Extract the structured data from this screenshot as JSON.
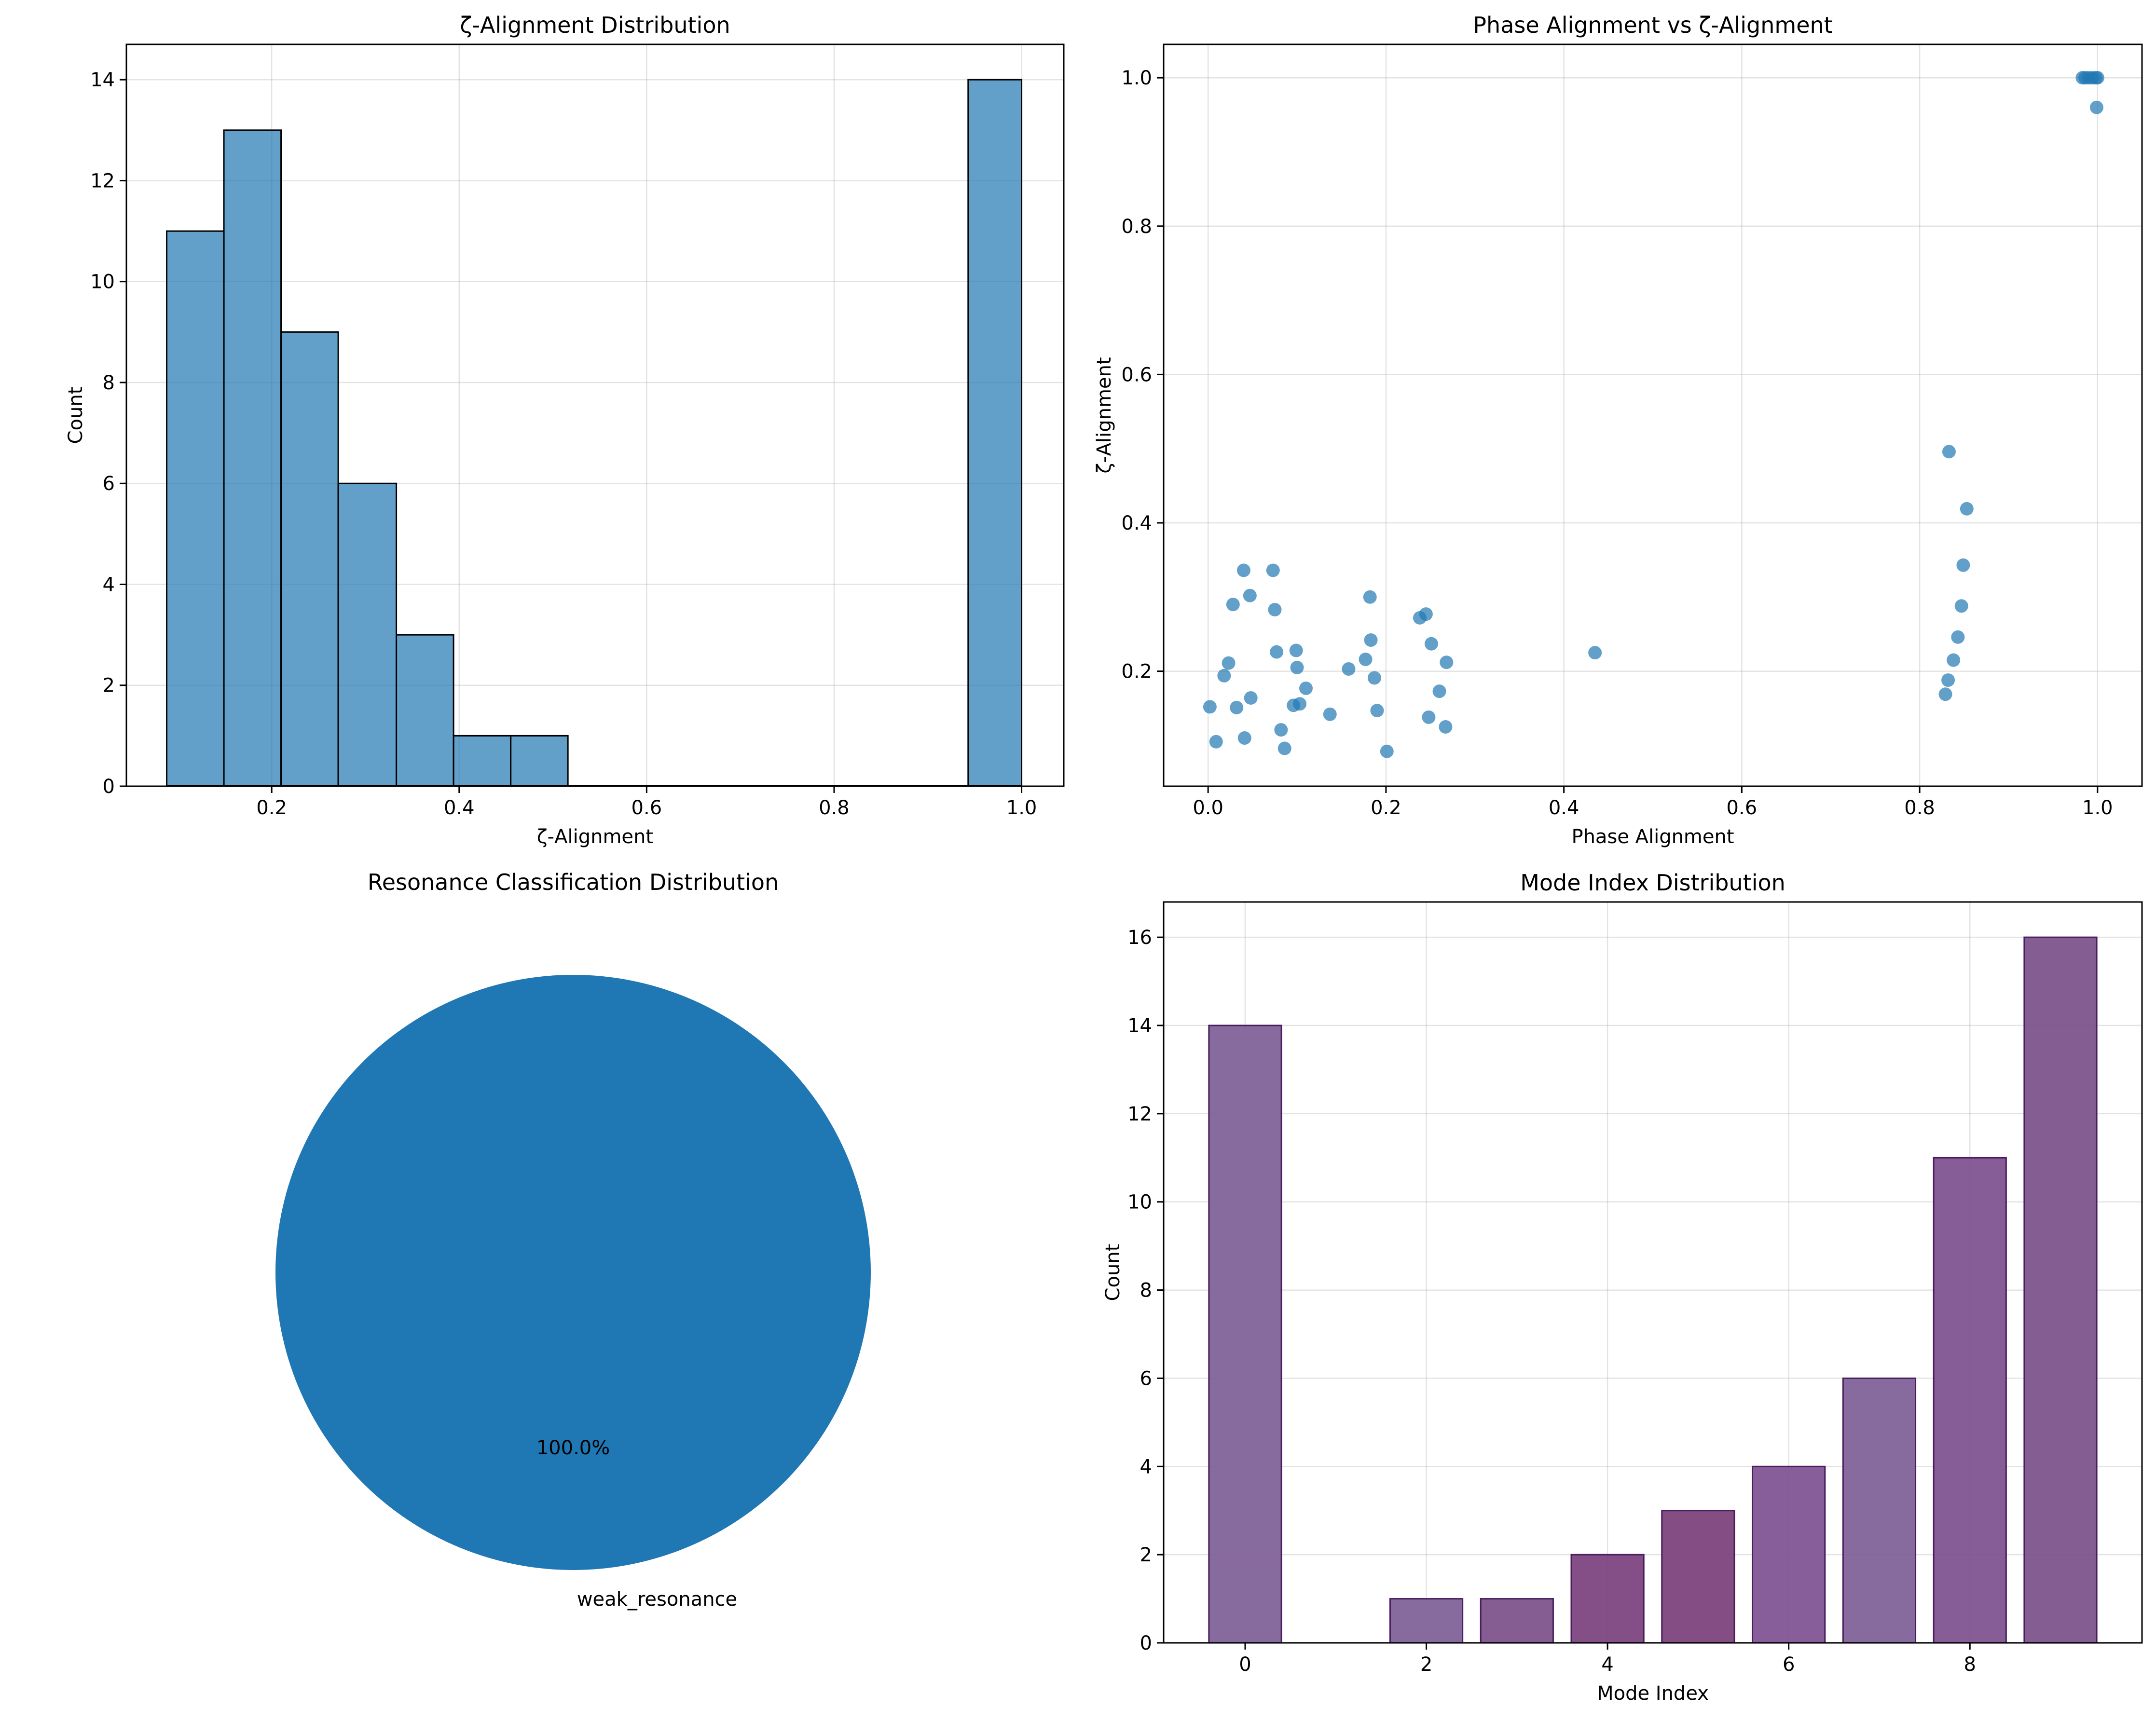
{
  "colors": {
    "hist": "#1f77b4",
    "scatter": "#1f77b4",
    "pie": "#1f77b4",
    "bars": [
      "#7e5e96",
      "#7e5e96",
      "#7e5e96",
      "#7b4f8a",
      "#7a3f7c",
      "#7a3f7a",
      "#7d5090",
      "#7d5e96",
      "#7c4f8e",
      "#7a4f8a"
    ],
    "grid": "#b0b0b0",
    "edge": "#000000"
  },
  "chart_data": [
    {
      "type": "bar",
      "subtype": "histogram",
      "title": "ζ-Alignment Distribution",
      "xlabel": "ζ-Alignment",
      "ylabel": "Count",
      "bin_edges": [
        0.088,
        0.149,
        0.21,
        0.271,
        0.333,
        0.394,
        0.455,
        0.516,
        0.577,
        0.638,
        0.699,
        0.76,
        0.821,
        0.882,
        0.943,
        1.0
      ],
      "values": [
        11,
        13,
        9,
        6,
        3,
        1,
        1,
        0,
        0,
        0,
        0,
        0,
        0,
        0,
        14
      ],
      "xlim": [
        0.045,
        1.045
      ],
      "ylim": [
        0,
        14.7
      ],
      "xticks": [
        0.2,
        0.4,
        0.6,
        0.8,
        1.0
      ],
      "xtick_labels": [
        "0.2",
        "0.4",
        "0.6",
        "0.8",
        "1.0"
      ],
      "yticks": [
        0,
        2,
        4,
        6,
        8,
        10,
        12,
        14
      ],
      "ytick_labels": [
        "0",
        "2",
        "4",
        "6",
        "8",
        "10",
        "12",
        "14"
      ],
      "grid": true
    },
    {
      "type": "scatter",
      "title": "Phase Alignment vs ζ-Alignment",
      "xlabel": "Phase Alignment",
      "ylabel": "ζ-Alignment",
      "xlim": [
        -0.05,
        1.05
      ],
      "ylim": [
        0.045,
        1.045
      ],
      "xticks": [
        0.0,
        0.2,
        0.4,
        0.6,
        0.8,
        1.0
      ],
      "xtick_labels": [
        "0.0",
        "0.2",
        "0.4",
        "0.6",
        "0.8",
        "1.0"
      ],
      "yticks": [
        0.2,
        0.4,
        0.6,
        0.8,
        1.0
      ],
      "ytick_labels": [
        "0.2",
        "0.4",
        "0.6",
        "0.8",
        "1.0"
      ],
      "grid": true,
      "x": [
        0.002,
        0.009,
        0.018,
        0.023,
        0.028,
        0.032,
        0.04,
        0.041,
        0.047,
        0.048,
        0.073,
        0.075,
        0.077,
        0.082,
        0.086,
        0.096,
        0.099,
        0.1,
        0.103,
        0.11,
        0.137,
        0.158,
        0.177,
        0.182,
        0.183,
        0.187,
        0.19,
        0.201,
        0.238,
        0.245,
        0.248,
        0.251,
        0.26,
        0.267,
        0.268,
        0.435,
        0.829,
        0.832,
        0.833,
        0.838,
        0.843,
        0.847,
        0.849,
        0.853,
        0.983,
        0.986,
        0.99,
        0.994,
        0.998,
        1.0,
        0.999
      ],
      "y": [
        0.152,
        0.105,
        0.194,
        0.211,
        0.29,
        0.151,
        0.336,
        0.11,
        0.302,
        0.164,
        0.336,
        0.283,
        0.226,
        0.121,
        0.096,
        0.154,
        0.228,
        0.205,
        0.156,
        0.177,
        0.142,
        0.203,
        0.216,
        0.3,
        0.242,
        0.191,
        0.147,
        0.092,
        0.272,
        0.277,
        0.138,
        0.237,
        0.173,
        0.125,
        0.212,
        0.225,
        0.169,
        0.188,
        0.496,
        0.215,
        0.246,
        0.288,
        0.343,
        0.419,
        1.0,
        1.0,
        1.0,
        1.0,
        1.0,
        1.0,
        0.96
      ]
    },
    {
      "type": "pie",
      "title": "Resonance Classification Distribution",
      "labels": [
        "weak_resonance"
      ],
      "values": [
        100.0
      ],
      "autopct_labels": [
        "100.0%"
      ]
    },
    {
      "type": "bar",
      "title": "Mode Index Distribution",
      "xlabel": "Mode Index",
      "ylabel": "Count",
      "categories": [
        0,
        1,
        2,
        3,
        4,
        5,
        6,
        7,
        8,
        9
      ],
      "values": [
        14,
        0,
        1,
        1,
        2,
        3,
        4,
        6,
        11,
        16
      ],
      "xlim": [
        -0.9,
        9.9
      ],
      "ylim": [
        0,
        16.8
      ],
      "xticks": [
        0,
        2,
        4,
        6,
        8
      ],
      "xtick_labels": [
        "0",
        "2",
        "4",
        "6",
        "8"
      ],
      "yticks": [
        0,
        2,
        4,
        6,
        8,
        10,
        12,
        14,
        16
      ],
      "ytick_labels": [
        "0",
        "2",
        "4",
        "6",
        "8",
        "10",
        "12",
        "14",
        "16"
      ],
      "grid": true
    }
  ]
}
